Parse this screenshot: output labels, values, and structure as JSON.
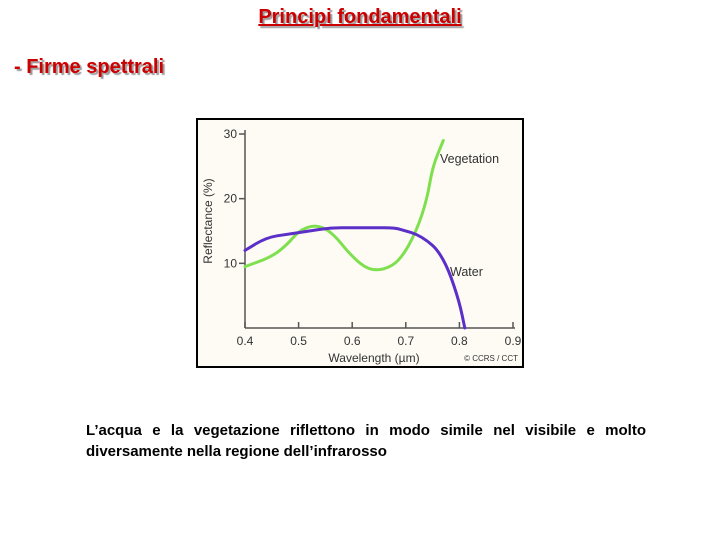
{
  "slide": {
    "title": "Principi fondamentali",
    "subtitle": "- Firme spettrali",
    "caption": "L’acqua e la vegetazione riflettono in modo simile nel visibile e molto diversamente nella regione dell’infrarosso"
  },
  "chart_data": {
    "type": "line",
    "xlabel": "Wavelength (µm)",
    "ylabel": "Reflectance (%)",
    "xlim": [
      0.4,
      0.9
    ],
    "ylim": [
      0,
      30
    ],
    "x_ticks": [
      "0.4",
      "0.5",
      "0.6",
      "0.7",
      "0.8",
      "0.9"
    ],
    "y_ticks": [
      "10",
      "20",
      "30"
    ],
    "credit": "© CCRS / CCT",
    "grid": false,
    "series": [
      {
        "name": "Vegetation",
        "color": "#7fe04f",
        "x": [
          0.4,
          0.45,
          0.48,
          0.5,
          0.53,
          0.56,
          0.6,
          0.63,
          0.66,
          0.69,
          0.72,
          0.74,
          0.75,
          0.77
        ],
        "y": [
          9.5,
          11.0,
          13.0,
          15.0,
          16.0,
          15.0,
          11.0,
          9.0,
          9.0,
          10.5,
          15.0,
          20.0,
          25.0,
          29.0
        ]
      },
      {
        "name": "Water",
        "color": "#5b2fc8",
        "x": [
          0.4,
          0.44,
          0.48,
          0.52,
          0.56,
          0.6,
          0.64,
          0.68,
          0.7,
          0.72,
          0.74,
          0.76,
          0.78,
          0.8,
          0.81
        ],
        "y": [
          12.0,
          14.0,
          14.5,
          15.0,
          15.5,
          15.5,
          15.5,
          15.5,
          15.0,
          14.5,
          13.5,
          12.0,
          9.0,
          4.0,
          0.0
        ]
      }
    ]
  }
}
